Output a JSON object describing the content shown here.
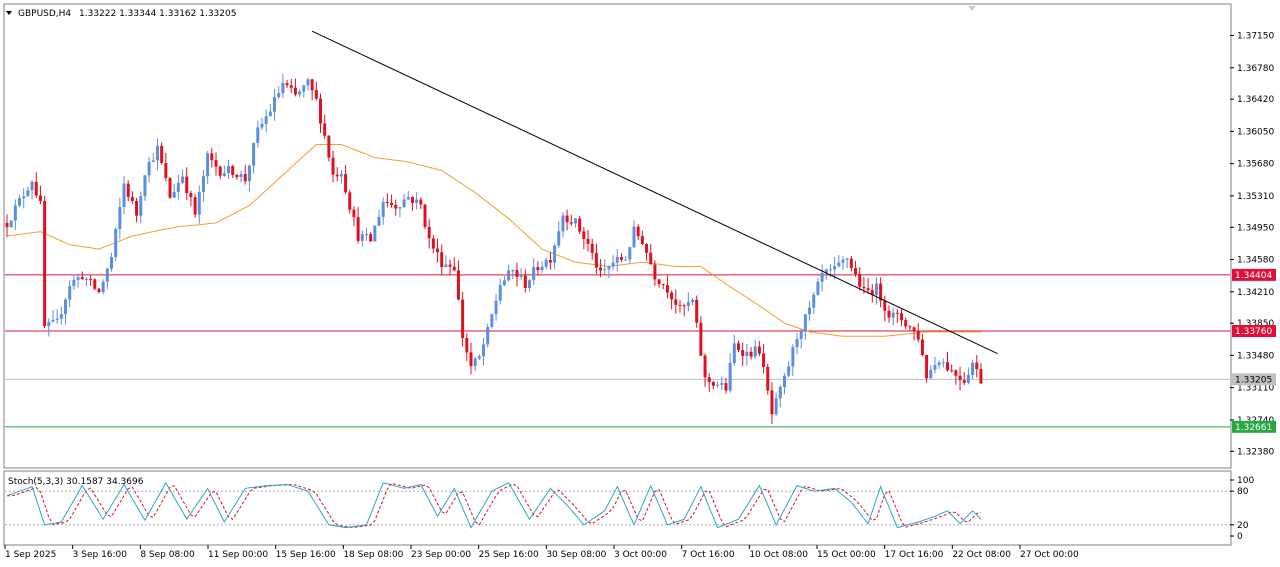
{
  "header": {
    "symbol": "GBPUSD,H4",
    "ohlc": "1.33222 1.33344 1.33162 1.33205"
  },
  "stoch_label": "Stoch(5,3,3) 30.1587 34.3696",
  "chart_data": {
    "type": "candlestick",
    "symbol": "GBPUSD",
    "timeframe": "H4",
    "price_axis": {
      "ylim": [
        1.322,
        1.375
      ],
      "ticks": [
        "1.37150",
        "1.36780",
        "1.36420",
        "1.36050",
        "1.35680",
        "1.35310",
        "1.34950",
        "1.34580",
        "1.34210",
        "1.33850",
        "1.33480",
        "1.33110",
        "1.32740",
        "1.32380"
      ]
    },
    "time_axis_labels": [
      "1 Sep 2025",
      "3 Sep 16:00",
      "8 Sep 08:00",
      "11 Sep 00:00",
      "15 Sep 16:00",
      "18 Sep 08:00",
      "23 Sep 00:00",
      "25 Sep 16:00",
      "30 Sep 08:00",
      "3 Oct 00:00",
      "7 Oct 16:00",
      "10 Oct 08:00",
      "15 Oct 00:00",
      "17 Oct 16:00",
      "22 Oct 08:00",
      "27 Oct 00:00"
    ],
    "horizontal_lines": [
      {
        "price": 1.34404,
        "label": "1.34404",
        "color": "#e0103a"
      },
      {
        "price": 1.3376,
        "label": "1.33760",
        "color": "#e0103a"
      },
      {
        "price": 1.33205,
        "label": "1.33205",
        "color": "#c0c0c0"
      },
      {
        "price": 1.32661,
        "label": "1.32661",
        "color": "#28a745"
      }
    ],
    "trendline": {
      "from": {
        "x_index": 73,
        "price": 1.372
      },
      "to": {
        "x_index": 237,
        "price": 1.335
      },
      "color": "#000000"
    },
    "colors": {
      "bull": "#5b8ee0",
      "bear": "#e01020",
      "ma": "#f0a030",
      "stoch_main": "#2aa8c8",
      "stoch_signal": "#e01020"
    },
    "stoch_axis": {
      "ticks": [
        "100",
        "80",
        "20",
        "0"
      ],
      "levels": [
        80,
        20
      ]
    },
    "keypoints": [
      [
        0,
        1.35
      ],
      [
        6,
        1.355
      ],
      [
        8,
        1.352
      ],
      [
        9,
        1.338
      ],
      [
        12,
        1.3385
      ],
      [
        15,
        1.343
      ],
      [
        18,
        1.344
      ],
      [
        22,
        1.342
      ],
      [
        25,
        1.346
      ],
      [
        28,
        1.3545
      ],
      [
        31,
        1.351
      ],
      [
        33,
        1.356
      ],
      [
        36,
        1.3585
      ],
      [
        39,
        1.353
      ],
      [
        42,
        1.3555
      ],
      [
        45,
        1.351
      ],
      [
        48,
        1.3575
      ],
      [
        51,
        1.356
      ],
      [
        54,
        1.356
      ],
      [
        57,
        1.355
      ],
      [
        60,
        1.3605
      ],
      [
        63,
        1.363
      ],
      [
        66,
        1.366
      ],
      [
        69,
        1.3645
      ],
      [
        72,
        1.366
      ],
      [
        74,
        1.364
      ],
      [
        76,
        1.36
      ],
      [
        78,
        1.3555
      ],
      [
        80,
        1.356
      ],
      [
        82,
        1.352
      ],
      [
        84,
        1.3485
      ],
      [
        87,
        1.348
      ],
      [
        90,
        1.3525
      ],
      [
        93,
        1.352
      ],
      [
        96,
        1.353
      ],
      [
        99,
        1.352
      ],
      [
        101,
        1.348
      ],
      [
        104,
        1.3455
      ],
      [
        107,
        1.345
      ],
      [
        109,
        1.337
      ],
      [
        111,
        1.3335
      ],
      [
        113,
        1.3345
      ],
      [
        115,
        1.3375
      ],
      [
        118,
        1.343
      ],
      [
        121,
        1.3445
      ],
      [
        124,
        1.343
      ],
      [
        127,
        1.345
      ],
      [
        130,
        1.346
      ],
      [
        133,
        1.351
      ],
      [
        136,
        1.35
      ],
      [
        139,
        1.3475
      ],
      [
        142,
        1.344
      ],
      [
        145,
        1.3455
      ],
      [
        148,
        1.346
      ],
      [
        150,
        1.349
      ],
      [
        152,
        1.348
      ],
      [
        155,
        1.344
      ],
      [
        158,
        1.3425
      ],
      [
        161,
        1.34
      ],
      [
        164,
        1.341
      ],
      [
        167,
        1.332
      ],
      [
        170,
        1.3315
      ],
      [
        172,
        1.331
      ],
      [
        174,
        1.336
      ],
      [
        177,
        1.335
      ],
      [
        180,
        1.3355
      ],
      [
        183,
        1.328
      ],
      [
        186,
        1.332
      ],
      [
        189,
        1.337
      ],
      [
        192,
        1.34
      ],
      [
        195,
        1.344
      ],
      [
        198,
        1.3445
      ],
      [
        201,
        1.346
      ],
      [
        203,
        1.344
      ],
      [
        205,
        1.342
      ],
      [
        208,
        1.3425
      ],
      [
        211,
        1.3395
      ],
      [
        214,
        1.339
      ],
      [
        216,
        1.338
      ],
      [
        218,
        1.337
      ],
      [
        220,
        1.3325
      ],
      [
        223,
        1.3345
      ],
      [
        226,
        1.333
      ],
      [
        229,
        1.332
      ],
      [
        231,
        1.334
      ],
      [
        233,
        1.332
      ]
    ],
    "ma_points": [
      [
        0,
        1.3485
      ],
      [
        8,
        1.349
      ],
      [
        15,
        1.3475
      ],
      [
        22,
        1.347
      ],
      [
        30,
        1.3485
      ],
      [
        40,
        1.3495
      ],
      [
        50,
        1.35
      ],
      [
        58,
        1.352
      ],
      [
        66,
        1.3555
      ],
      [
        74,
        1.359
      ],
      [
        80,
        1.359
      ],
      [
        88,
        1.3575
      ],
      [
        96,
        1.357
      ],
      [
        104,
        1.356
      ],
      [
        112,
        1.3535
      ],
      [
        120,
        1.3505
      ],
      [
        128,
        1.347
      ],
      [
        136,
        1.3455
      ],
      [
        144,
        1.345
      ],
      [
        152,
        1.3455
      ],
      [
        160,
        1.345
      ],
      [
        166,
        1.345
      ],
      [
        172,
        1.343
      ],
      [
        180,
        1.3405
      ],
      [
        186,
        1.3385
      ],
      [
        192,
        1.3375
      ],
      [
        200,
        1.337
      ],
      [
        210,
        1.337
      ],
      [
        220,
        1.3375
      ],
      [
        228,
        1.3375
      ],
      [
        233,
        1.3375
      ]
    ],
    "stoch_points": [
      [
        0,
        72
      ],
      [
        6,
        88
      ],
      [
        9,
        20
      ],
      [
        13,
        25
      ],
      [
        18,
        90
      ],
      [
        23,
        30
      ],
      [
        28,
        92
      ],
      [
        33,
        28
      ],
      [
        38,
        95
      ],
      [
        43,
        30
      ],
      [
        48,
        85
      ],
      [
        52,
        25
      ],
      [
        57,
        85
      ],
      [
        62,
        90
      ],
      [
        67,
        92
      ],
      [
        72,
        80
      ],
      [
        77,
        20
      ],
      [
        81,
        15
      ],
      [
        86,
        20
      ],
      [
        90,
        95
      ],
      [
        95,
        85
      ],
      [
        99,
        92
      ],
      [
        103,
        35
      ],
      [
        107,
        85
      ],
      [
        111,
        15
      ],
      [
        116,
        80
      ],
      [
        120,
        95
      ],
      [
        125,
        30
      ],
      [
        130,
        85
      ],
      [
        134,
        55
      ],
      [
        138,
        20
      ],
      [
        143,
        45
      ],
      [
        146,
        88
      ],
      [
        150,
        20
      ],
      [
        154,
        90
      ],
      [
        158,
        20
      ],
      [
        162,
        30
      ],
      [
        166,
        88
      ],
      [
        170,
        15
      ],
      [
        175,
        30
      ],
      [
        180,
        90
      ],
      [
        184,
        20
      ],
      [
        189,
        90
      ],
      [
        193,
        80
      ],
      [
        198,
        85
      ],
      [
        202,
        60
      ],
      [
        206,
        22
      ],
      [
        209,
        88
      ],
      [
        213,
        15
      ],
      [
        218,
        25
      ],
      [
        222,
        35
      ],
      [
        225,
        45
      ],
      [
        228,
        22
      ],
      [
        231,
        45
      ],
      [
        233,
        30
      ]
    ]
  }
}
